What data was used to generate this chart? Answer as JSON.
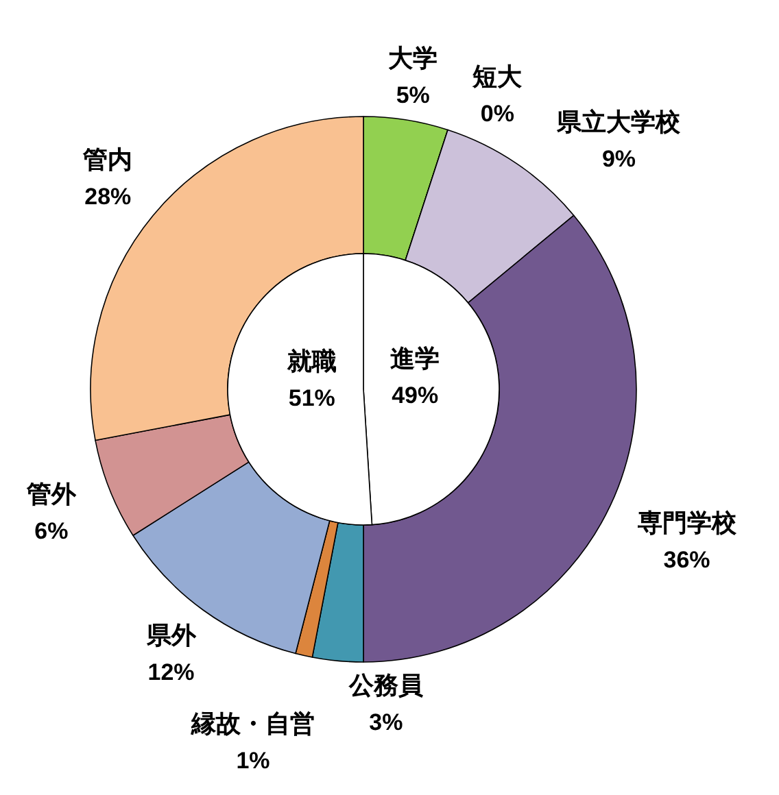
{
  "chart_data": [
    {
      "type": "donut",
      "categories": [
        "大学",
        "短大",
        "県立大学校",
        "専門学校",
        "公務員",
        "縁故・自営",
        "県外",
        "管外",
        "管内"
      ],
      "values": [
        5,
        0,
        9,
        36,
        3,
        1,
        12,
        6,
        28
      ],
      "value_labels": [
        "5%",
        "0%",
        "9%",
        "36%",
        "3%",
        "1%",
        "12%",
        "6%",
        "28%"
      ],
      "colors": [
        "#92d050",
        "#4bacc6",
        "#ccc1da",
        "#71588f",
        "#4298b0",
        "#dc853d",
        "#95abd3",
        "#d29392",
        "#f9c191"
      ]
    },
    {
      "type": "pie",
      "categories": [
        "進学",
        "就職"
      ],
      "values": [
        49,
        51
      ],
      "value_labels": [
        "49%",
        "51%"
      ],
      "colors": [
        "#ffffff",
        "#ffffff"
      ]
    }
  ]
}
